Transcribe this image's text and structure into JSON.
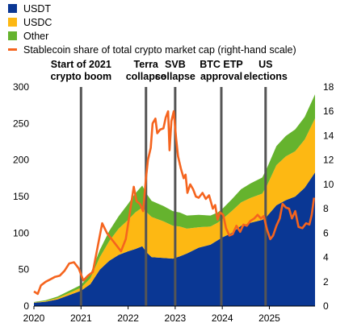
{
  "colors": {
    "usdt": "#0a3794",
    "usdc": "#fdb813",
    "other": "#65b32e",
    "share": "#f5641e",
    "event_line": "#555555"
  },
  "chart_data": {
    "type": "area",
    "title": "",
    "legend": {
      "position": "top-left",
      "entries": [
        {
          "label": "USDT",
          "kind": "box",
          "color_key": "usdt"
        },
        {
          "label": "USDC",
          "kind": "box",
          "color_key": "usdc"
        },
        {
          "label": "Other",
          "kind": "box",
          "color_key": "other"
        },
        {
          "label": "Stablecoin share of total crypto market cap (right-hand scale)",
          "kind": "line",
          "color_key": "share"
        }
      ]
    },
    "x_axis": {
      "type": "time",
      "range": [
        2020.0,
        2025.97
      ],
      "tick_labels": [
        "2020",
        "2021",
        "2022",
        "2023",
        "2024",
        "2025"
      ],
      "tick_values": [
        2020,
        2021,
        2022,
        2023,
        2024,
        2025
      ]
    },
    "y_axis_left": {
      "range": [
        0,
        300
      ],
      "ticks": [
        0,
        50,
        100,
        150,
        200,
        250,
        300
      ]
    },
    "y_axis_right": {
      "range": [
        0,
        18
      ],
      "ticks": [
        0,
        2,
        4,
        6,
        8,
        10,
        12,
        14,
        16,
        18
      ]
    },
    "grid": false,
    "series": [
      {
        "name": "USDT",
        "stack": true,
        "axis": "left",
        "color_key": "usdt",
        "points": [
          [
            2020.0,
            4.5
          ],
          [
            2020.25,
            6
          ],
          [
            2020.5,
            9
          ],
          [
            2020.75,
            15
          ],
          [
            2021.0,
            21
          ],
          [
            2021.2,
            30
          ],
          [
            2021.4,
            50
          ],
          [
            2021.6,
            62
          ],
          [
            2021.8,
            70
          ],
          [
            2022.0,
            75
          ],
          [
            2022.15,
            78
          ],
          [
            2022.3,
            82
          ],
          [
            2022.4,
            73
          ],
          [
            2022.5,
            67
          ],
          [
            2022.75,
            66
          ],
          [
            2022.95,
            65
          ],
          [
            2023.1,
            68
          ],
          [
            2023.25,
            72
          ],
          [
            2023.5,
            80
          ],
          [
            2023.75,
            84
          ],
          [
            2023.9,
            90
          ],
          [
            2024.0,
            94
          ],
          [
            2024.2,
            100
          ],
          [
            2024.4,
            110
          ],
          [
            2024.6,
            114
          ],
          [
            2024.85,
            118
          ],
          [
            2024.95,
            123
          ],
          [
            2025.15,
            138
          ],
          [
            2025.35,
            145
          ],
          [
            2025.55,
            150
          ],
          [
            2025.75,
            162
          ],
          [
            2025.97,
            183
          ]
        ]
      },
      {
        "name": "USDC",
        "stack": true,
        "axis": "left",
        "color_key": "usdc",
        "points": [
          [
            2020.0,
            0.5
          ],
          [
            2020.25,
            1
          ],
          [
            2020.5,
            2
          ],
          [
            2020.75,
            3
          ],
          [
            2021.0,
            4
          ],
          [
            2021.2,
            8
          ],
          [
            2021.4,
            17
          ],
          [
            2021.6,
            27
          ],
          [
            2021.8,
            36
          ],
          [
            2022.0,
            43
          ],
          [
            2022.15,
            50
          ],
          [
            2022.3,
            53
          ],
          [
            2022.4,
            55
          ],
          [
            2022.5,
            55
          ],
          [
            2022.75,
            50
          ],
          [
            2022.95,
            45
          ],
          [
            2023.1,
            41
          ],
          [
            2023.25,
            34
          ],
          [
            2023.5,
            28
          ],
          [
            2023.75,
            25
          ],
          [
            2023.9,
            24
          ],
          [
            2024.0,
            25
          ],
          [
            2024.2,
            30
          ],
          [
            2024.4,
            32
          ],
          [
            2024.6,
            34
          ],
          [
            2024.85,
            36
          ],
          [
            2024.95,
            42
          ],
          [
            2025.15,
            55
          ],
          [
            2025.35,
            60
          ],
          [
            2025.55,
            62
          ],
          [
            2025.75,
            66
          ],
          [
            2025.97,
            74
          ]
        ]
      },
      {
        "name": "Other",
        "stack": true,
        "axis": "left",
        "color_key": "other",
        "points": [
          [
            2020.0,
            0.5
          ],
          [
            2020.25,
            1
          ],
          [
            2020.5,
            2
          ],
          [
            2020.75,
            3
          ],
          [
            2021.0,
            4
          ],
          [
            2021.2,
            6
          ],
          [
            2021.4,
            10
          ],
          [
            2021.6,
            14
          ],
          [
            2021.8,
            17
          ],
          [
            2022.0,
            22
          ],
          [
            2022.15,
            26
          ],
          [
            2022.3,
            30
          ],
          [
            2022.4,
            25
          ],
          [
            2022.5,
            22
          ],
          [
            2022.75,
            21
          ],
          [
            2022.95,
            20
          ],
          [
            2023.1,
            19
          ],
          [
            2023.25,
            18
          ],
          [
            2023.5,
            17
          ],
          [
            2023.75,
            15
          ],
          [
            2023.9,
            14
          ],
          [
            2024.0,
            14
          ],
          [
            2024.2,
            16
          ],
          [
            2024.4,
            18
          ],
          [
            2024.6,
            20
          ],
          [
            2024.85,
            22
          ],
          [
            2024.95,
            24
          ],
          [
            2025.15,
            26
          ],
          [
            2025.35,
            28
          ],
          [
            2025.55,
            30
          ],
          [
            2025.75,
            31
          ],
          [
            2025.97,
            33
          ]
        ]
      },
      {
        "name": "Stablecoin share of total crypto market cap (right-hand scale)",
        "axis": "right",
        "color_key": "share",
        "points": [
          [
            2020.0,
            1.2
          ],
          [
            2020.08,
            1.0
          ],
          [
            2020.15,
            1.7
          ],
          [
            2020.25,
            2.0
          ],
          [
            2020.35,
            2.2
          ],
          [
            2020.45,
            2.4
          ],
          [
            2020.55,
            2.5
          ],
          [
            2020.65,
            2.9
          ],
          [
            2020.75,
            3.5
          ],
          [
            2020.85,
            3.6
          ],
          [
            2020.95,
            3.1
          ],
          [
            2021.05,
            2.1
          ],
          [
            2021.15,
            2.5
          ],
          [
            2021.25,
            2.8
          ],
          [
            2021.35,
            4.8
          ],
          [
            2021.45,
            6.8
          ],
          [
            2021.55,
            6.0
          ],
          [
            2021.65,
            5.5
          ],
          [
            2021.75,
            5.0
          ],
          [
            2021.85,
            4.5
          ],
          [
            2021.95,
            5.5
          ],
          [
            2022.05,
            8.0
          ],
          [
            2022.12,
            9.8
          ],
          [
            2022.18,
            8.6
          ],
          [
            2022.25,
            8.4
          ],
          [
            2022.32,
            7.8
          ],
          [
            2022.38,
            10.5
          ],
          [
            2022.42,
            12.0
          ],
          [
            2022.48,
            13.0
          ],
          [
            2022.52,
            15.0
          ],
          [
            2022.58,
            15.4
          ],
          [
            2022.62,
            14.2
          ],
          [
            2022.68,
            14.5
          ],
          [
            2022.75,
            14.6
          ],
          [
            2022.8,
            15.5
          ],
          [
            2022.85,
            16.0
          ],
          [
            2022.88,
            12.8
          ],
          [
            2022.92,
            15.2
          ],
          [
            2022.97,
            16.0
          ],
          [
            2023.02,
            13.8
          ],
          [
            2023.06,
            12.3
          ],
          [
            2023.12,
            11.3
          ],
          [
            2023.18,
            10.5
          ],
          [
            2023.22,
            10.8
          ],
          [
            2023.26,
            9.3
          ],
          [
            2023.32,
            10.0
          ],
          [
            2023.38,
            9.6
          ],
          [
            2023.44,
            9.0
          ],
          [
            2023.5,
            8.9
          ],
          [
            2023.58,
            9.3
          ],
          [
            2023.65,
            8.8
          ],
          [
            2023.72,
            9.1
          ],
          [
            2023.8,
            8.0
          ],
          [
            2023.85,
            8.3
          ],
          [
            2023.9,
            7.1
          ],
          [
            2023.95,
            7.7
          ],
          [
            2024.02,
            7.5
          ],
          [
            2024.08,
            6.4
          ],
          [
            2024.15,
            5.8
          ],
          [
            2024.22,
            5.9
          ],
          [
            2024.3,
            6.6
          ],
          [
            2024.38,
            6.1
          ],
          [
            2024.45,
            6.7
          ],
          [
            2024.52,
            6.6
          ],
          [
            2024.6,
            7.0
          ],
          [
            2024.68,
            7.2
          ],
          [
            2024.75,
            7.5
          ],
          [
            2024.82,
            7.2
          ],
          [
            2024.88,
            7.4
          ],
          [
            2024.95,
            6.3
          ],
          [
            2025.02,
            5.5
          ],
          [
            2025.08,
            5.8
          ],
          [
            2025.15,
            6.6
          ],
          [
            2025.22,
            7.2
          ],
          [
            2025.28,
            8.4
          ],
          [
            2025.35,
            8.1
          ],
          [
            2025.42,
            8.0
          ],
          [
            2025.48,
            7.2
          ],
          [
            2025.55,
            7.8
          ],
          [
            2025.62,
            6.5
          ],
          [
            2025.7,
            6.4
          ],
          [
            2025.78,
            6.8
          ],
          [
            2025.85,
            6.7
          ],
          [
            2025.9,
            7.5
          ],
          [
            2025.95,
            8.9
          ]
        ]
      }
    ],
    "annotations": [
      {
        "x": 2021.0,
        "lines": [
          "Start of 2021",
          "crypto boom"
        ]
      },
      {
        "x": 2022.38,
        "lines": [
          "Terra",
          "collapse"
        ]
      },
      {
        "x": 2023.0,
        "lines": [
          "SVB",
          "collapse"
        ]
      },
      {
        "x": 2023.98,
        "lines": [
          "BTC ETP",
          "approval"
        ]
      },
      {
        "x": 2024.92,
        "lines": [
          "US",
          "elections"
        ]
      }
    ]
  }
}
